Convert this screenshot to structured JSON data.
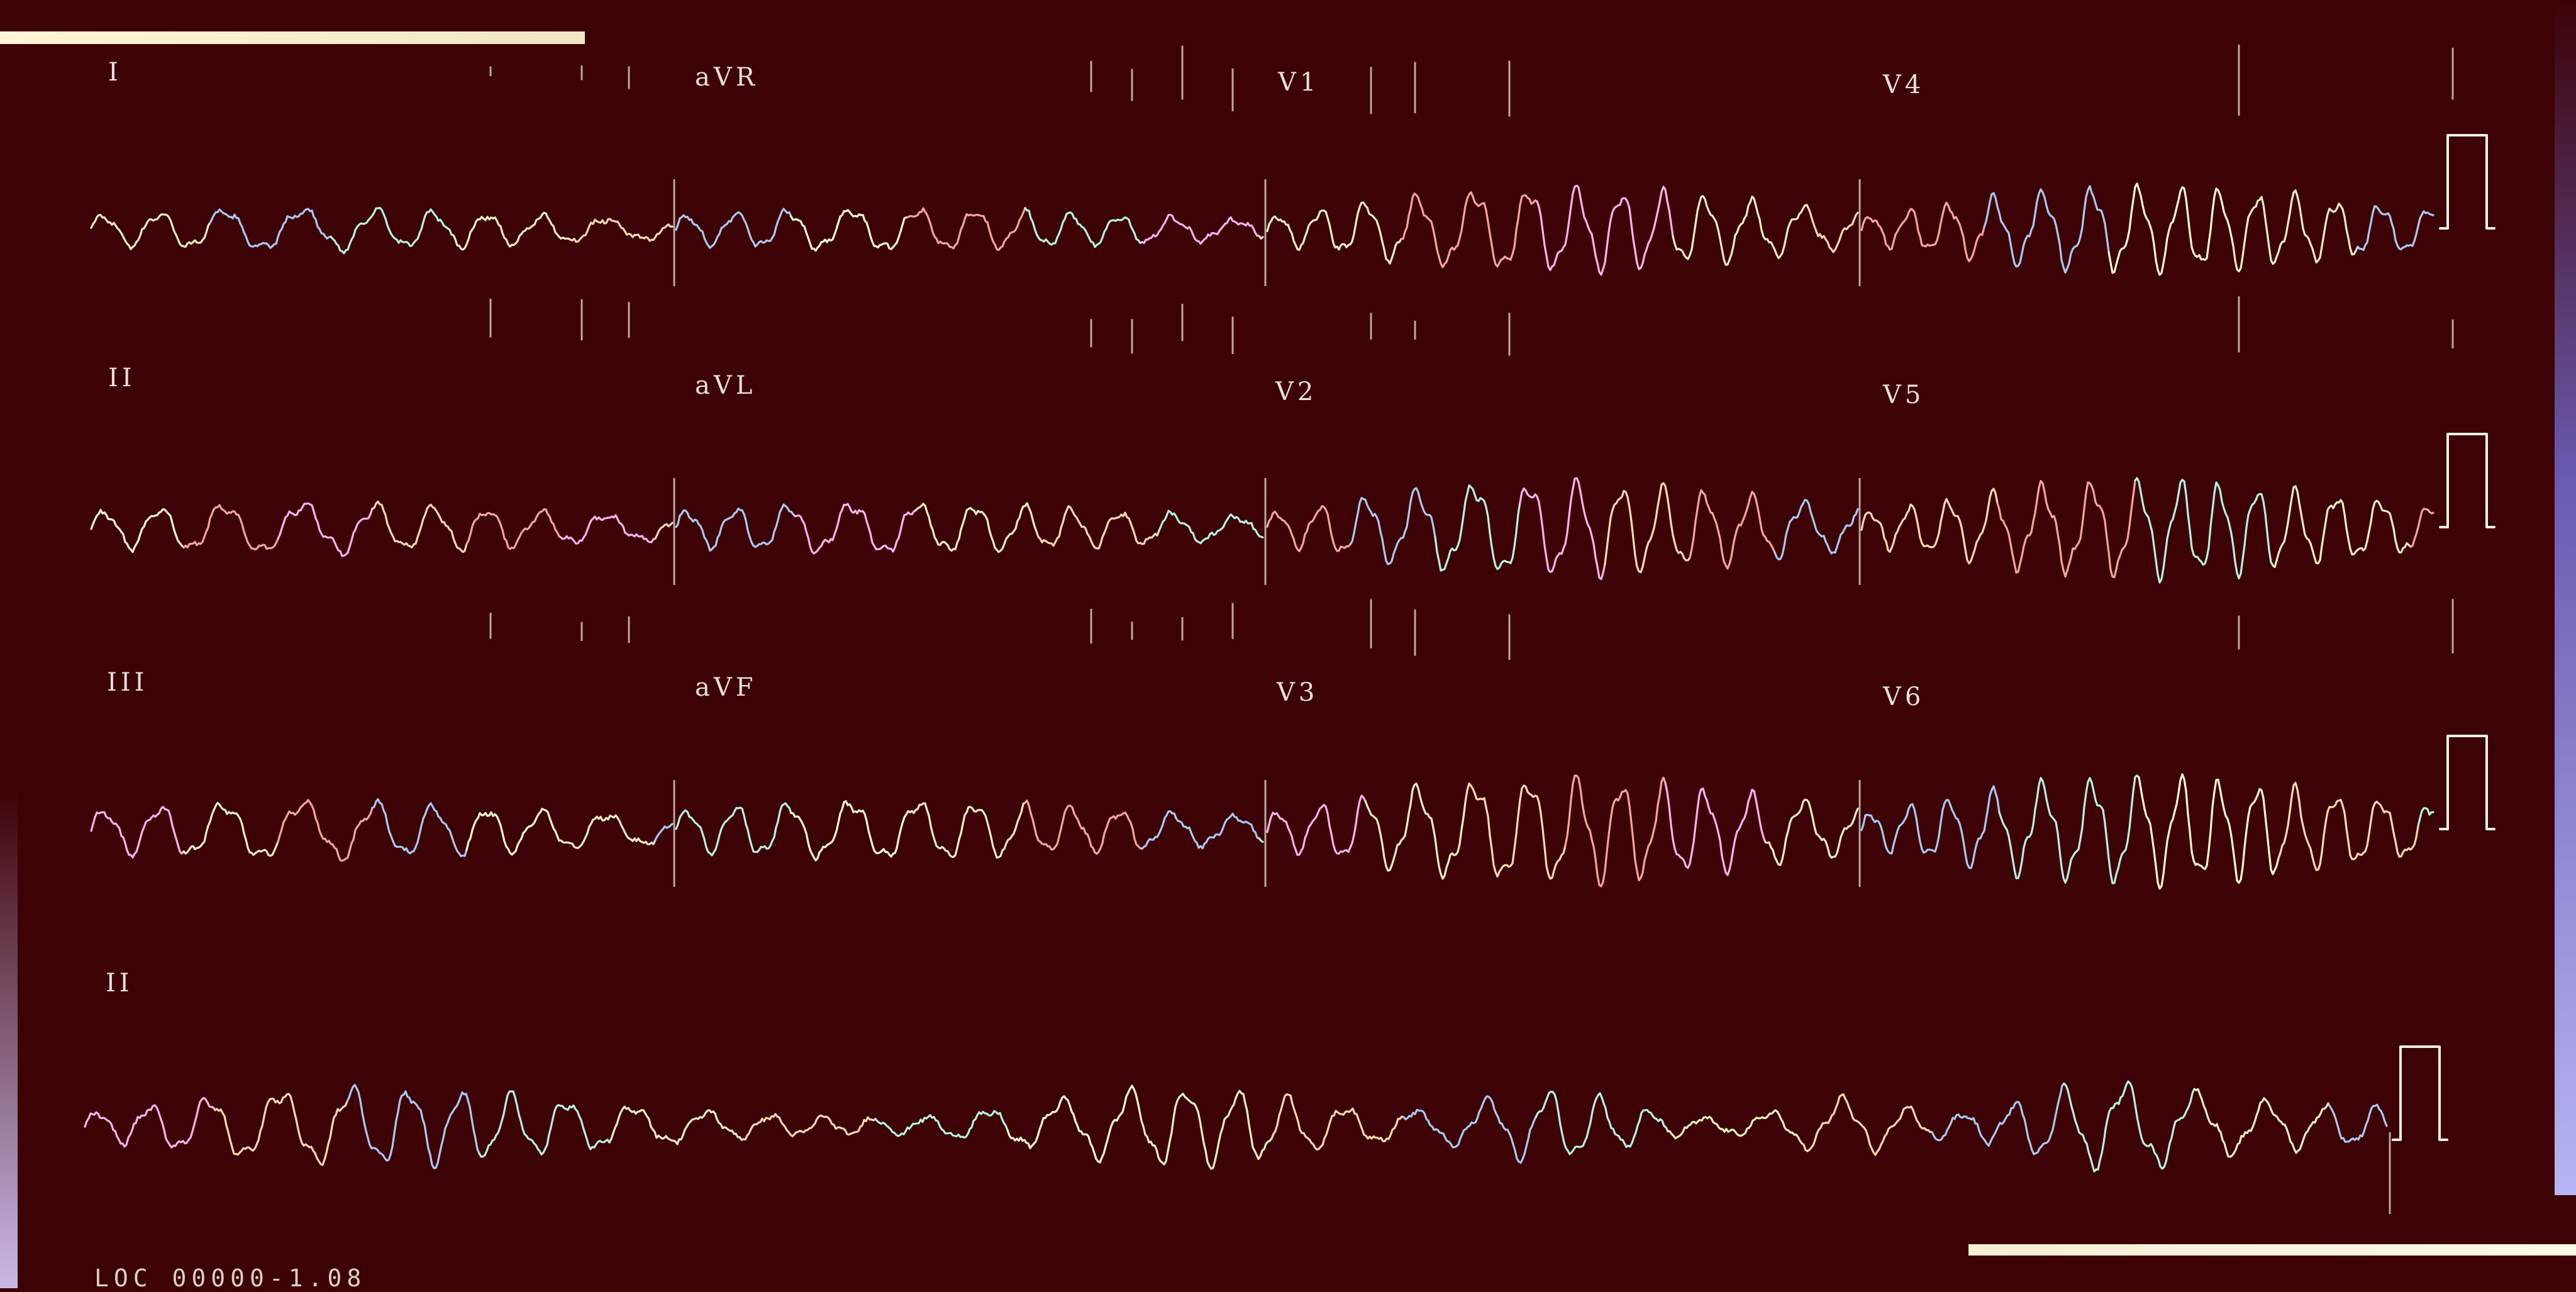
{
  "sheet": {
    "background": "#3d0206",
    "trace_colors": [
      "#f2eec0",
      "#ffd9b0",
      "#f4a3a3",
      "#a9c8f2",
      "#b6f0e0",
      "#f6b3ef",
      "#fffbd0"
    ],
    "calibration_color": "#f5f0e8",
    "tick_color": "#b8a8a0"
  },
  "leads": [
    {
      "id": "I",
      "label": "I"
    },
    {
      "id": "aVR",
      "label": "aVR"
    },
    {
      "id": "V1",
      "label": "V1"
    },
    {
      "id": "V4",
      "label": "V4"
    },
    {
      "id": "II",
      "label": "II"
    },
    {
      "id": "aVL",
      "label": "aVL"
    },
    {
      "id": "V2",
      "label": "V2"
    },
    {
      "id": "V5",
      "label": "V5"
    },
    {
      "id": "III",
      "label": "III"
    },
    {
      "id": "aVF",
      "label": "aVF"
    },
    {
      "id": "V3",
      "label": "V3"
    },
    {
      "id": "V6",
      "label": "V6"
    },
    {
      "id": "II-rhythm",
      "label": "II"
    }
  ],
  "footer": {
    "code": "LOC 00000-1.08"
  }
}
